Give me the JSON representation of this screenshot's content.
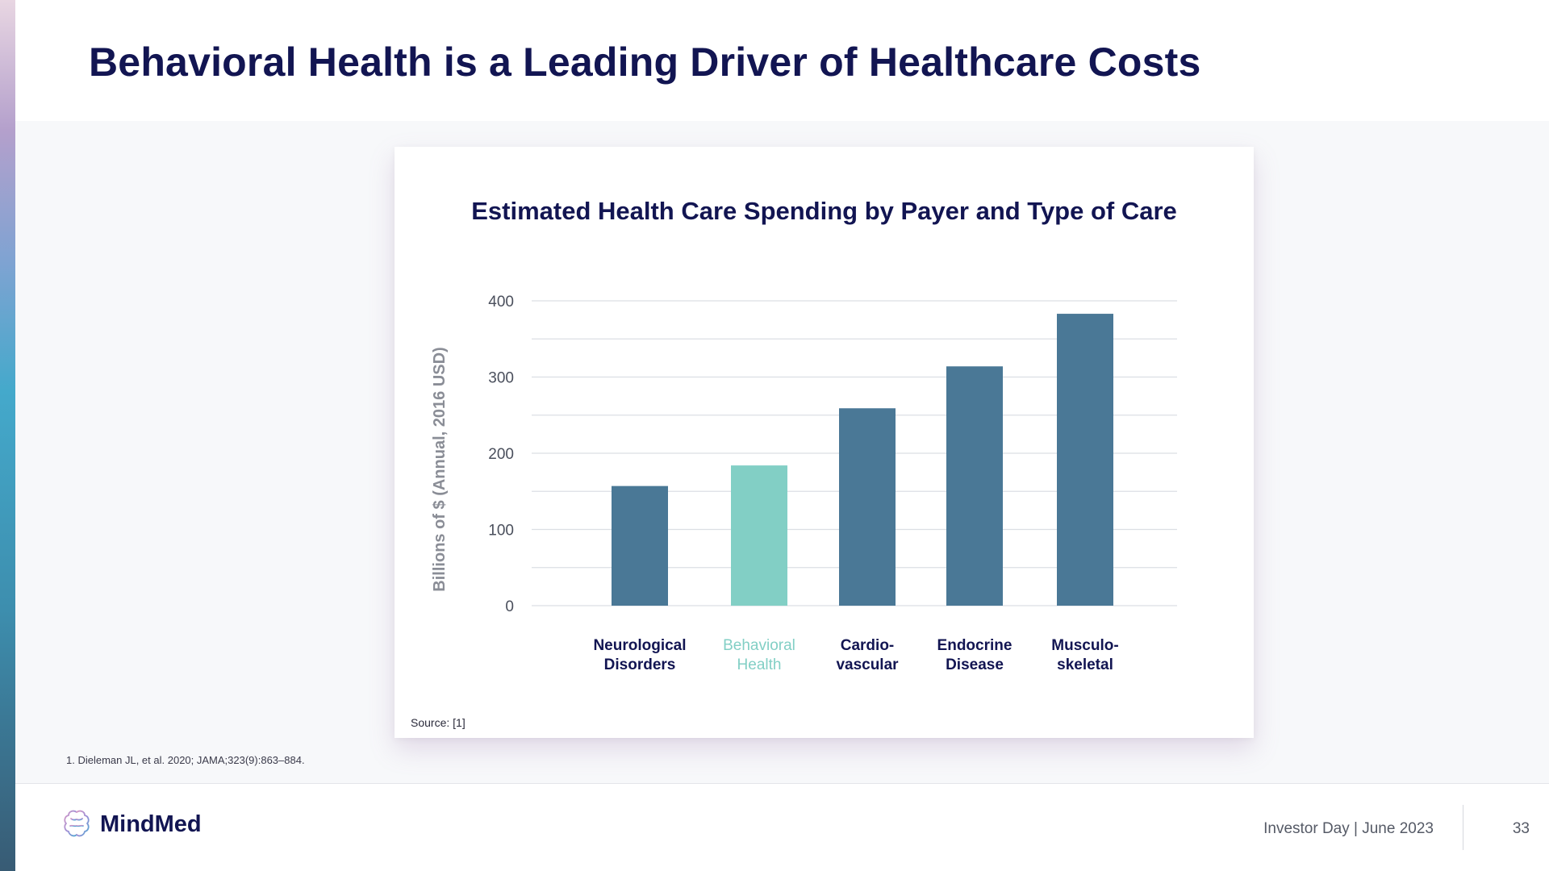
{
  "slide": {
    "title": "Behavioral Health is a Leading Driver of Healthcare Costs",
    "footnote": "1. Dieleman JL, et al. 2020; JAMA;323(9):863–884.",
    "source": "Source: [1]"
  },
  "footer": {
    "brand": "MindMed",
    "event": "Investor Day | June 2023",
    "page": "33"
  },
  "colors": {
    "primary_bar": "#4a7896",
    "highlight_bar": "#82cfc5",
    "navy": "#121552"
  },
  "chart_data": {
    "type": "bar",
    "title": "Estimated Health Care Spending by Payer and Type of Care",
    "ylabel": "Billions of $ (Annual, 2016 USD)",
    "xlabel": "",
    "categories": [
      [
        "Neurological",
        "Disorders"
      ],
      [
        "Behavioral",
        "Health"
      ],
      [
        "Cardio-",
        "vascular"
      ],
      [
        "Endocrine",
        "Disease"
      ],
      [
        "Musculo-",
        "skeletal"
      ]
    ],
    "values": [
      157,
      184,
      259,
      314,
      383
    ],
    "highlight_index": 1,
    "ylim": [
      0,
      400
    ],
    "yticks": [
      0,
      100,
      200,
      300,
      400
    ],
    "gridlines": [
      0,
      50,
      100,
      150,
      200,
      250,
      300,
      350,
      400
    ],
    "grid": true
  }
}
